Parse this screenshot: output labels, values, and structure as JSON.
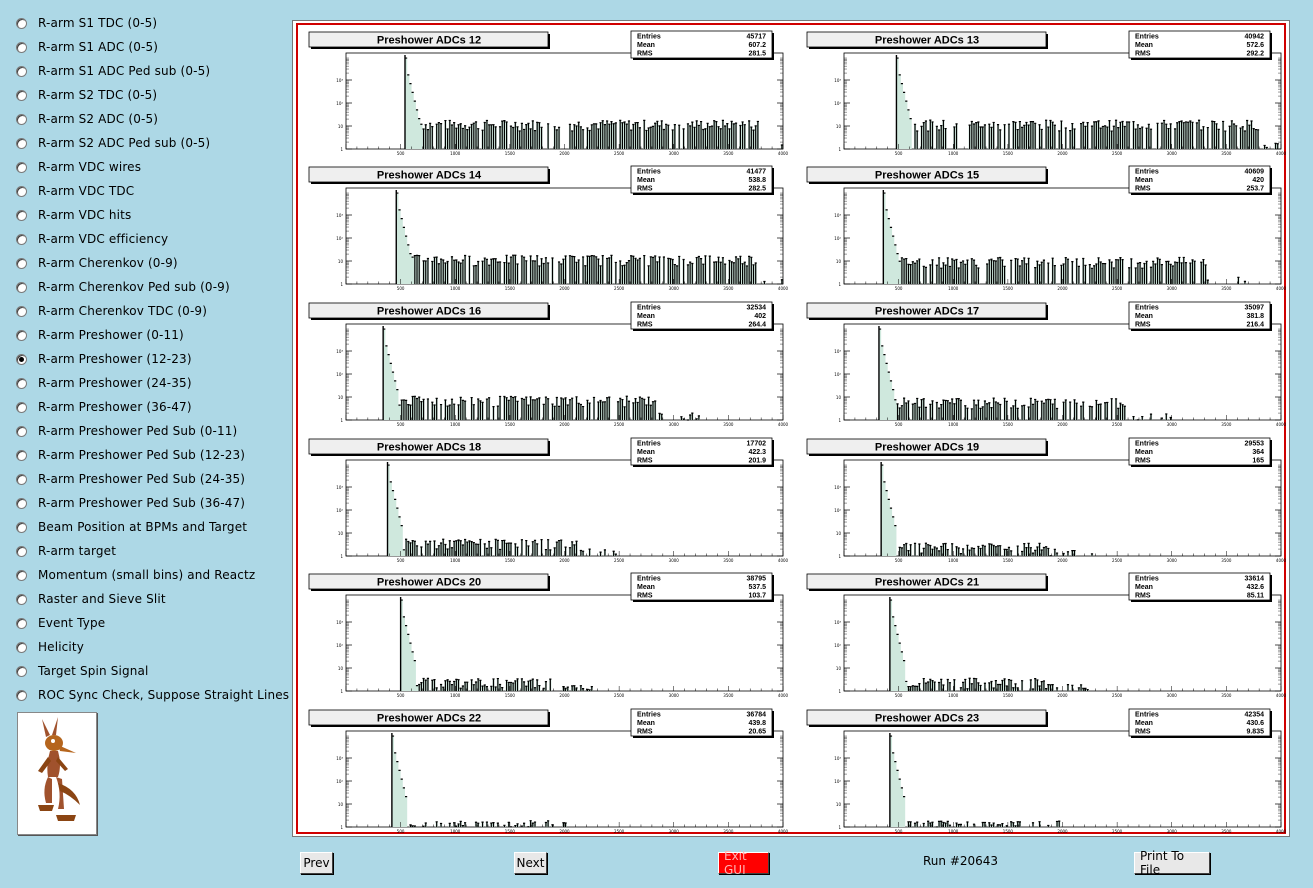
{
  "sidebar": {
    "items": [
      {
        "label": "R-arm S1 TDC (0-5)",
        "checked": false
      },
      {
        "label": "R-arm S1 ADC (0-5)",
        "checked": false
      },
      {
        "label": "R-arm S1 ADC Ped sub (0-5)",
        "checked": false
      },
      {
        "label": "R-arm S2 TDC (0-5)",
        "checked": false
      },
      {
        "label": "R-arm S2 ADC (0-5)",
        "checked": false
      },
      {
        "label": "R-arm S2 ADC Ped sub (0-5)",
        "checked": false
      },
      {
        "label": "R-arm VDC wires",
        "checked": false
      },
      {
        "label": "R-arm VDC TDC",
        "checked": false
      },
      {
        "label": "R-arm VDC hits",
        "checked": false
      },
      {
        "label": "R-arm VDC efficiency",
        "checked": false
      },
      {
        "label": "R-arm Cherenkov (0-9)",
        "checked": false
      },
      {
        "label": "R-arm Cherenkov Ped sub (0-9)",
        "checked": false
      },
      {
        "label": "R-arm Cherenkov TDC (0-9)",
        "checked": false
      },
      {
        "label": "R-arm Preshower (0-11)",
        "checked": false
      },
      {
        "label": "R-arm Preshower (12-23)",
        "checked": true
      },
      {
        "label": "R-arm Preshower (24-35)",
        "checked": false
      },
      {
        "label": "R-arm Preshower (36-47)",
        "checked": false
      },
      {
        "label": "R-arm Preshower Ped Sub (0-11)",
        "checked": false
      },
      {
        "label": "R-arm Preshower Ped Sub (12-23)",
        "checked": false
      },
      {
        "label": "R-arm Preshower Ped Sub (24-35)",
        "checked": false
      },
      {
        "label": "R-arm Preshower Ped Sub (36-47)",
        "checked": false
      },
      {
        "label": "Beam Position at BPMs and Target",
        "checked": false
      },
      {
        "label": "R-arm target",
        "checked": false
      },
      {
        "label": "Momentum (small bins) and Reactz",
        "checked": false
      },
      {
        "label": "Raster and Sieve Slit",
        "checked": false
      },
      {
        "label": "Event Type",
        "checked": false
      },
      {
        "label": "Helicity",
        "checked": false
      },
      {
        "label": "Target Spin Signal",
        "checked": false
      },
      {
        "label": "ROC Sync Check, Suppose Straight Lines",
        "checked": false
      }
    ]
  },
  "logo": {
    "icon": "coyote-logo-icon"
  },
  "stats_labels": {
    "entries": "Entries",
    "mean": "Mean",
    "rms": "RMS"
  },
  "chart_data": [
    {
      "type": "bar",
      "title": "Preshower ADCs 12",
      "entries": "45717",
      "mean": "607.2",
      "rms": "281.5",
      "ylog": true,
      "xlim": [
        0,
        4000
      ],
      "peak_x": 560,
      "tail_level": 10
    },
    {
      "type": "bar",
      "title": "Preshower ADCs 13",
      "entries": "40942",
      "mean": "572.6",
      "rms": "292.2",
      "ylog": true,
      "xlim": [
        0,
        4000
      ],
      "peak_x": 500,
      "tail_level": 10
    },
    {
      "type": "bar",
      "title": "Preshower ADCs 14",
      "entries": "41477",
      "mean": "538.8",
      "rms": "282.5",
      "ylog": true,
      "xlim": [
        0,
        4000
      ],
      "peak_x": 470,
      "tail_level": 10
    },
    {
      "type": "bar",
      "title": "Preshower ADCs 15",
      "entries": "40609",
      "mean": "420",
      "rms": "253.7",
      "ylog": true,
      "xlim": [
        0,
        4000
      ],
      "peak_x": 380,
      "tail_level": 8
    },
    {
      "type": "bar",
      "title": "Preshower ADCs 16",
      "entries": "32534",
      "mean": "402",
      "rms": "264.4",
      "ylog": true,
      "xlim": [
        0,
        4000
      ],
      "peak_x": 360,
      "tail_level": 6
    },
    {
      "type": "bar",
      "title": "Preshower ADCs 17",
      "entries": "35097",
      "mean": "381.8",
      "rms": "216.4",
      "ylog": true,
      "xlim": [
        0,
        4000
      ],
      "peak_x": 340,
      "tail_level": 5
    },
    {
      "type": "bar",
      "title": "Preshower ADCs 18",
      "entries": "17702",
      "mean": "422.3",
      "rms": "201.9",
      "ylog": true,
      "xlim": [
        0,
        4000
      ],
      "peak_x": 400,
      "tail_level": 3
    },
    {
      "type": "bar",
      "title": "Preshower ADCs 19",
      "entries": "29553",
      "mean": "364",
      "rms": "165",
      "ylog": true,
      "xlim": [
        0,
        4000
      ],
      "peak_x": 350,
      "tail_level": 2
    },
    {
      "type": "bar",
      "title": "Preshower ADCs 20",
      "entries": "38795",
      "mean": "537.5",
      "rms": "103.7",
      "ylog": true,
      "xlim": [
        0,
        4000
      ],
      "peak_x": 520,
      "tail_level": 2
    },
    {
      "type": "bar",
      "title": "Preshower ADCs 21",
      "entries": "33614",
      "mean": "432.6",
      "rms": "85.11",
      "ylog": true,
      "xlim": [
        0,
        4000
      ],
      "peak_x": 430,
      "tail_level": 2
    },
    {
      "type": "bar",
      "title": "Preshower ADCs 22",
      "entries": "36784",
      "mean": "439.8",
      "rms": "20.65",
      "ylog": true,
      "xlim": [
        0,
        4000
      ],
      "peak_x": 440,
      "tail_level": 1
    },
    {
      "type": "bar",
      "title": "Preshower ADCs 23",
      "entries": "42354",
      "mean": "430.6",
      "rms": "9.835",
      "ylog": true,
      "xlim": [
        0,
        4000
      ],
      "peak_x": 430,
      "tail_level": 1
    }
  ],
  "axis_ticks": {
    "x": [
      "500",
      "1000",
      "1500",
      "2000",
      "2500",
      "3000",
      "3500",
      "4000"
    ],
    "y": [
      "10³",
      "10²",
      "10",
      "1"
    ]
  },
  "buttons": {
    "prev": "Prev",
    "next": "Next",
    "exit": "Exit GUI",
    "print": "Print To File"
  },
  "run_label": "Run #20643",
  "colors": {
    "background": "#add8e6",
    "canvas_border": "#d00000",
    "fill": "#5b9f88",
    "exit_button": "#ff0000"
  }
}
